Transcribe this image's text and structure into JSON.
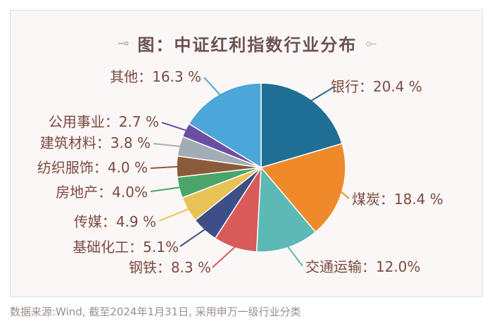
{
  "title": "图：中证红利指数行业分布",
  "title_deco_left": "⊸",
  "title_deco_right": "⟜",
  "source": "数据来源:Wind, 截至2024年1月31日, 采用申万一级行业分类",
  "chart_data": {
    "type": "pie",
    "title": "图：中证红利指数行业分布",
    "slices": [
      {
        "label": "银行：20.4 %",
        "category": "银行",
        "value": 20.4,
        "color": "#1f6e96"
      },
      {
        "label": "煤炭：18.4 %",
        "category": "煤炭",
        "value": 18.4,
        "color": "#ee8a2a"
      },
      {
        "label": "交通运输：12.0%",
        "category": "交通运输",
        "value": 12.0,
        "color": "#5cb9b5"
      },
      {
        "label": "钢铁：8.3 %",
        "category": "钢铁",
        "value": 8.3,
        "color": "#d85b5a"
      },
      {
        "label": "基础化工：5.1%",
        "category": "基础化工",
        "value": 5.1,
        "color": "#3d4f86"
      },
      {
        "label": "传媒：4.9 %",
        "category": "传媒",
        "value": 4.9,
        "color": "#e9c257"
      },
      {
        "label": "房地产：4.0%",
        "category": "房地产",
        "value": 4.0,
        "color": "#4aa56a"
      },
      {
        "label": "纺织服饰：4.0 %",
        "category": "纺织服饰",
        "value": 4.0,
        "color": "#8a5a3a"
      },
      {
        "label": "建筑材料：3.8 %",
        "category": "建筑材料",
        "value": 3.8,
        "color": "#a2acb4"
      },
      {
        "label": "公用事业：2.7 %",
        "category": "公用事业",
        "value": 2.7,
        "color": "#6b4ea4"
      },
      {
        "label": "其他：16.3 %",
        "category": "其他",
        "value": 16.3,
        "color": "#4ca6d8"
      }
    ]
  }
}
